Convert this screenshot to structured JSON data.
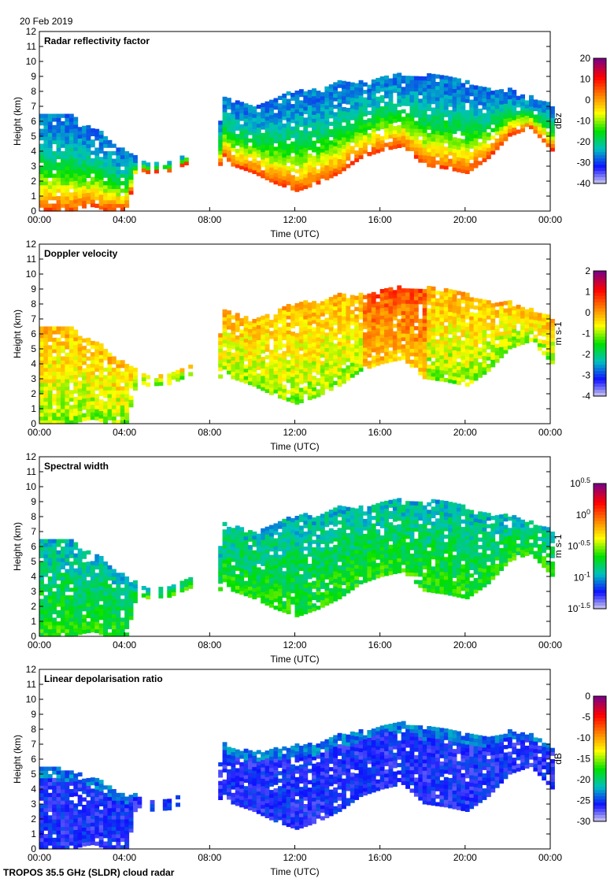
{
  "header": {
    "date": "20 Feb 2019"
  },
  "footer": {
    "instrument": "TROPOS 35.5 GHz (SLDR) cloud radar"
  },
  "chart_data": [
    {
      "type": "heatmap",
      "title": "Radar reflectivity factor",
      "xlabel": "Time (UTC)",
      "ylabel": "Height (km)",
      "xticks": [
        "00:00",
        "04:00",
        "08:00",
        "12:00",
        "16:00",
        "20:00",
        "00:00"
      ],
      "yticks": [
        "0",
        "1",
        "2",
        "3",
        "4",
        "5",
        "6",
        "7",
        "8",
        "9",
        "10",
        "11",
        "12"
      ],
      "ylim": [
        0,
        12
      ],
      "xlim_hours": [
        0,
        24
      ],
      "colorbar": {
        "label": "dBz",
        "range": [
          -40,
          20
        ],
        "ticks": [
          "20",
          "10",
          "0",
          "-10",
          "-20",
          "-30",
          "-40"
        ]
      },
      "variable": "Z"
    },
    {
      "type": "heatmap",
      "title": "Doppler velocity",
      "xlabel": "Time (UTC)",
      "ylabel": "Height (km)",
      "xticks": [
        "00:00",
        "04:00",
        "08:00",
        "12:00",
        "16:00",
        "20:00",
        "00:00"
      ],
      "yticks": [
        "0",
        "1",
        "2",
        "3",
        "4",
        "5",
        "6",
        "7",
        "8",
        "9",
        "10",
        "11",
        "12"
      ],
      "ylim": [
        0,
        12
      ],
      "xlim_hours": [
        0,
        24
      ],
      "colorbar": {
        "label": "m s-1",
        "range": [
          -4,
          2
        ],
        "ticks": [
          "2",
          "1",
          "0",
          "-1",
          "-2",
          "-3",
          "-4"
        ]
      },
      "variable": "V"
    },
    {
      "type": "heatmap",
      "title": "Spectral width",
      "xlabel": "Time (UTC)",
      "ylabel": "Height (km)",
      "xticks": [
        "00:00",
        "04:00",
        "08:00",
        "12:00",
        "16:00",
        "20:00",
        "00:00"
      ],
      "yticks": [
        "0",
        "1",
        "2",
        "3",
        "4",
        "5",
        "6",
        "7",
        "8",
        "9",
        "10",
        "11",
        "12"
      ],
      "ylim": [
        0,
        12
      ],
      "xlim_hours": [
        0,
        24
      ],
      "colorbar": {
        "label": "m s-1",
        "range": [
          -1.5,
          0.5
        ],
        "scale": "log10",
        "ticks": [
          "10^0.5",
          "10^0",
          "10^-0.5",
          "10^-1",
          "10^-1.5"
        ]
      },
      "variable": "W"
    },
    {
      "type": "heatmap",
      "title": "Linear depolarisation ratio",
      "xlabel": "Time (UTC)",
      "ylabel": "Height (km)",
      "xticks": [
        "00:00",
        "04:00",
        "08:00",
        "12:00",
        "16:00",
        "20:00",
        "00:00"
      ],
      "yticks": [
        "0",
        "1",
        "2",
        "3",
        "4",
        "5",
        "6",
        "7",
        "8",
        "9",
        "10",
        "11",
        "12"
      ],
      "ylim": [
        0,
        12
      ],
      "xlim_hours": [
        0,
        24
      ],
      "colorbar": {
        "label": "dB",
        "range": [
          -30,
          0
        ],
        "ticks": [
          "0",
          "-5",
          "-10",
          "-15",
          "-20",
          "-25",
          "-30"
        ]
      },
      "variable": "LDR"
    }
  ],
  "cloud_envelope": {
    "hours": [
      0,
      0.5,
      1,
      1.5,
      2,
      2.5,
      3,
      3.5,
      4,
      4.5,
      5,
      6,
      7,
      8,
      8.5,
      9,
      10,
      11,
      12,
      13,
      14,
      15,
      16,
      17,
      18,
      19,
      20,
      21,
      22,
      23,
      24
    ],
    "top_km": [
      6.5,
      6.5,
      6.3,
      6.3,
      5.5,
      5.5,
      5.0,
      4.2,
      4.0,
      3.5,
      3.2,
      3.3,
      3.8,
      0,
      7.5,
      7.2,
      7.0,
      7.5,
      8.0,
      8.0,
      8.5,
      8.5,
      9.0,
      9.0,
      9.0,
      9.0,
      8.5,
      8.0,
      8.0,
      7.5,
      7.0
    ],
    "base_km": [
      0,
      0,
      0,
      0,
      0.2,
      0.3,
      0,
      0,
      0,
      2.8,
      2.5,
      2.6,
      3.2,
      0,
      3.8,
      3.0,
      2.5,
      1.8,
      1.3,
      1.8,
      2.5,
      3.5,
      4.0,
      4.3,
      3.0,
      2.8,
      2.5,
      3.5,
      5.0,
      5.5,
      4.0
    ]
  },
  "colors": {
    "axis": "#000000",
    "colormap": [
      "#dcd8ec",
      "#1010ff",
      "#00c0c0",
      "#00e000",
      "#ffff00",
      "#ff8000",
      "#ff0000",
      "#800080"
    ]
  }
}
